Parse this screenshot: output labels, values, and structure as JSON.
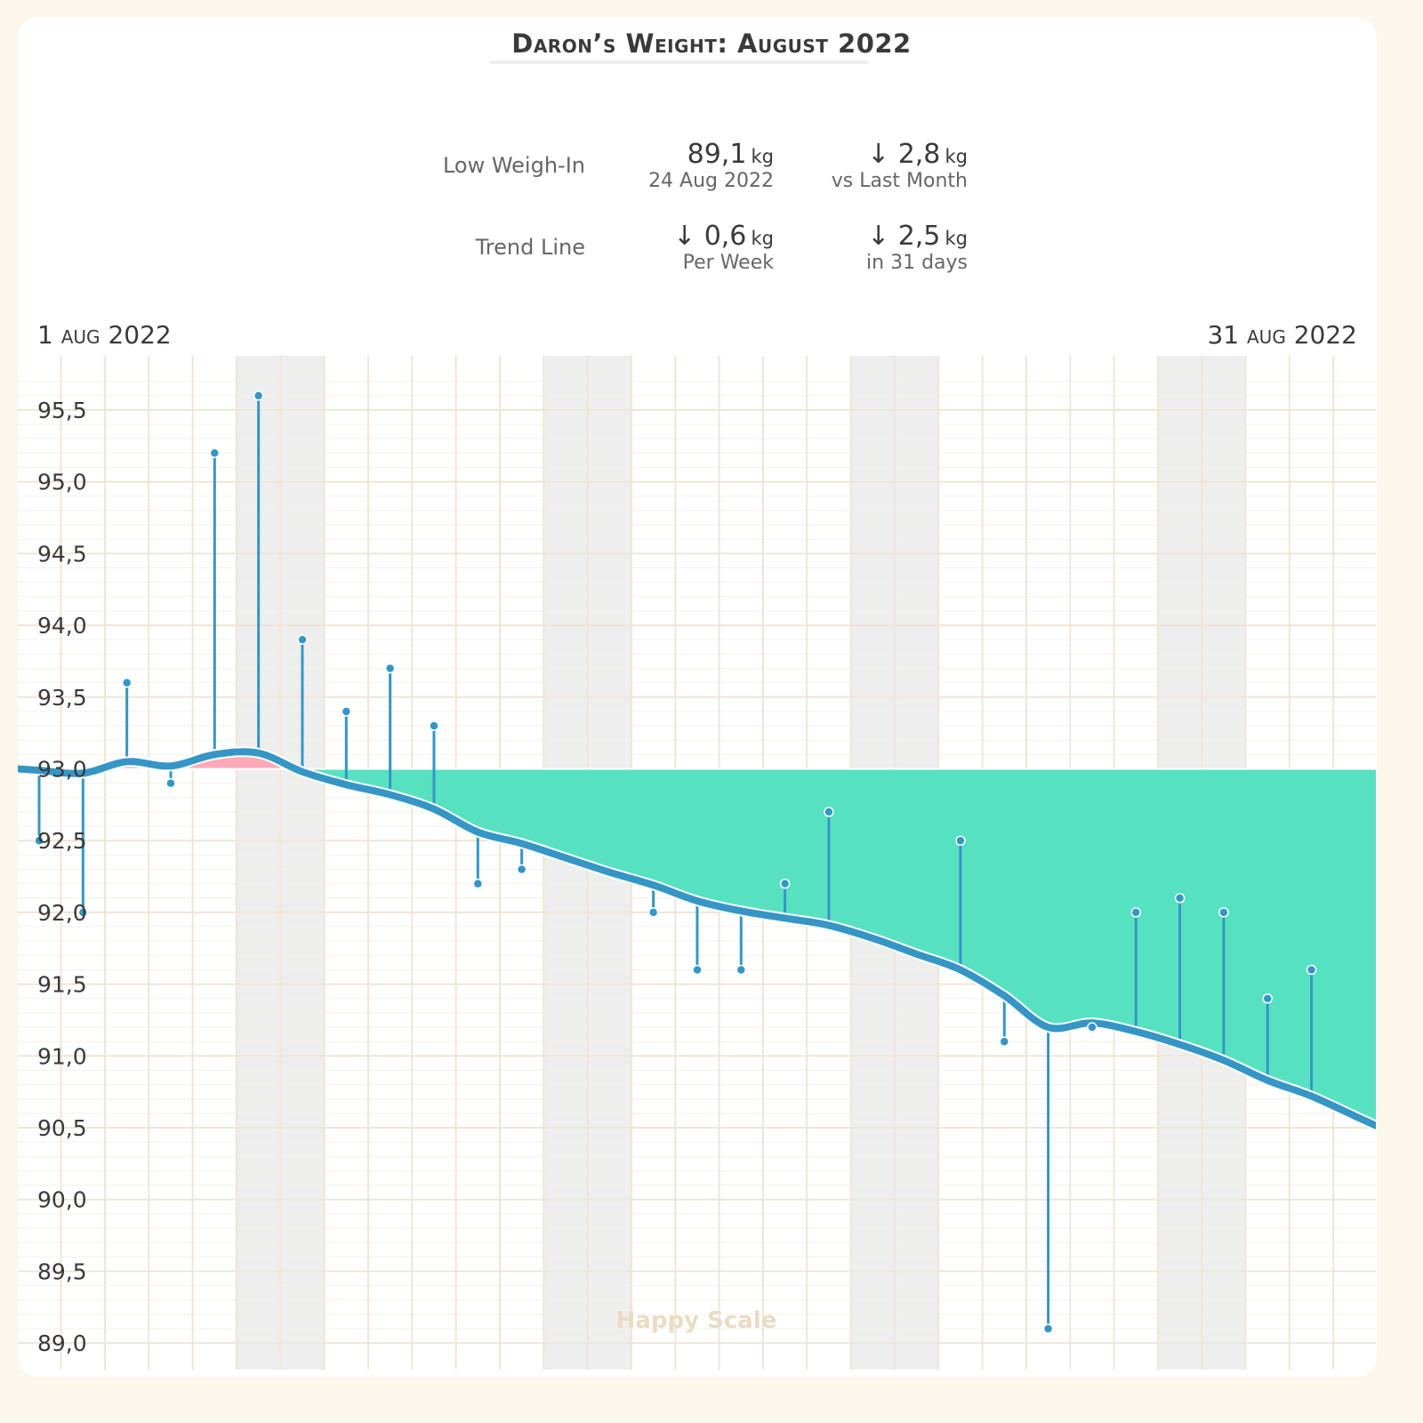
{
  "header": {
    "title": "Daron’s Weight: August 2022"
  },
  "stats": {
    "low_weigh_in": {
      "label": "Low Weigh-In",
      "value": "89,1",
      "unit": "kg",
      "sub": "24 Aug 2022"
    },
    "vs_last_month": {
      "value": "↓ 2,8",
      "unit": "kg",
      "sub": "vs Last Month"
    },
    "trend_line": {
      "label": "Trend Line",
      "value": "↓ 0,6",
      "unit": "kg",
      "sub": "Per Week"
    },
    "trend_total": {
      "value": "↓ 2,5",
      "unit": "kg",
      "sub": "in 31 days"
    }
  },
  "watermark": "Happy Scale",
  "colors": {
    "accent": "#3596c6",
    "below_trend_fill": "#56e2c0",
    "above_baseline_fill": "#ffa8b8",
    "grid": "#efe6d6",
    "weekend_band": "#eeeeee",
    "background": "#fbf7ec"
  },
  "chart_data": {
    "type": "line",
    "title": "Daron’s Weight: August 2022",
    "x_start_label": {
      "day": "1",
      "month": "aug",
      "year": "2022"
    },
    "x_end_label": {
      "day": "31",
      "month": "aug",
      "year": "2022"
    },
    "xlim_days": [
      1,
      31
    ],
    "ylim": [
      89.0,
      95.7
    ],
    "y_ticks": [
      "89,0",
      "89,5",
      "90,0",
      "90,5",
      "91,0",
      "91,5",
      "92,0",
      "92,5",
      "93,0",
      "93,5",
      "94,0",
      "94,5",
      "95,0",
      "95,5"
    ],
    "y_tick_values": [
      89.0,
      89.5,
      90.0,
      90.5,
      91.0,
      91.5,
      92.0,
      92.5,
      93.0,
      93.5,
      94.0,
      94.5,
      95.0,
      95.5
    ],
    "baseline": 93.0,
    "grid": true,
    "weekend_days": [
      6,
      7,
      13,
      14,
      20,
      21,
      27,
      28
    ],
    "weigh_ins": [
      {
        "day": 1,
        "kg": 92.5
      },
      {
        "day": 2,
        "kg": 92.0
      },
      {
        "day": 3,
        "kg": 93.6
      },
      {
        "day": 4,
        "kg": 92.9
      },
      {
        "day": 5,
        "kg": 95.2
      },
      {
        "day": 6,
        "kg": 95.6
      },
      {
        "day": 7,
        "kg": 93.9
      },
      {
        "day": 8,
        "kg": 93.4
      },
      {
        "day": 9,
        "kg": 93.7
      },
      {
        "day": 10,
        "kg": 93.3
      },
      {
        "day": 11,
        "kg": 92.2
      },
      {
        "day": 12,
        "kg": 92.3
      },
      {
        "day": 15,
        "kg": 92.0
      },
      {
        "day": 16,
        "kg": 91.6
      },
      {
        "day": 17,
        "kg": 91.6
      },
      {
        "day": 18,
        "kg": 92.2
      },
      {
        "day": 19,
        "kg": 92.7
      },
      {
        "day": 22,
        "kg": 92.5
      },
      {
        "day": 23,
        "kg": 91.1
      },
      {
        "day": 24,
        "kg": 89.1
      },
      {
        "day": 25,
        "kg": 91.2
      },
      {
        "day": 26,
        "kg": 92.0
      },
      {
        "day": 27,
        "kg": 92.1
      },
      {
        "day": 28,
        "kg": 92.0
      },
      {
        "day": 29,
        "kg": 91.4
      },
      {
        "day": 30,
        "kg": 91.6
      }
    ],
    "trend": [
      {
        "day": 1,
        "kg": 92.99
      },
      {
        "day": 2,
        "kg": 92.97
      },
      {
        "day": 3,
        "kg": 93.05
      },
      {
        "day": 4,
        "kg": 93.02
      },
      {
        "day": 5,
        "kg": 93.1
      },
      {
        "day": 6,
        "kg": 93.11
      },
      {
        "day": 7,
        "kg": 92.98
      },
      {
        "day": 8,
        "kg": 92.89
      },
      {
        "day": 9,
        "kg": 92.82
      },
      {
        "day": 10,
        "kg": 92.72
      },
      {
        "day": 11,
        "kg": 92.56
      },
      {
        "day": 12,
        "kg": 92.48
      },
      {
        "day": 13,
        "kg": 92.38
      },
      {
        "day": 14,
        "kg": 92.28
      },
      {
        "day": 15,
        "kg": 92.19
      },
      {
        "day": 16,
        "kg": 92.08
      },
      {
        "day": 17,
        "kg": 92.01
      },
      {
        "day": 18,
        "kg": 91.96
      },
      {
        "day": 19,
        "kg": 91.91
      },
      {
        "day": 20,
        "kg": 91.82
      },
      {
        "day": 21,
        "kg": 91.71
      },
      {
        "day": 22,
        "kg": 91.6
      },
      {
        "day": 23,
        "kg": 91.42
      },
      {
        "day": 24,
        "kg": 91.2
      },
      {
        "day": 25,
        "kg": 91.23
      },
      {
        "day": 26,
        "kg": 91.17
      },
      {
        "day": 27,
        "kg": 91.08
      },
      {
        "day": 28,
        "kg": 90.97
      },
      {
        "day": 29,
        "kg": 90.83
      },
      {
        "day": 30,
        "kg": 90.72
      },
      {
        "day": 31,
        "kg": 90.58
      }
    ]
  }
}
